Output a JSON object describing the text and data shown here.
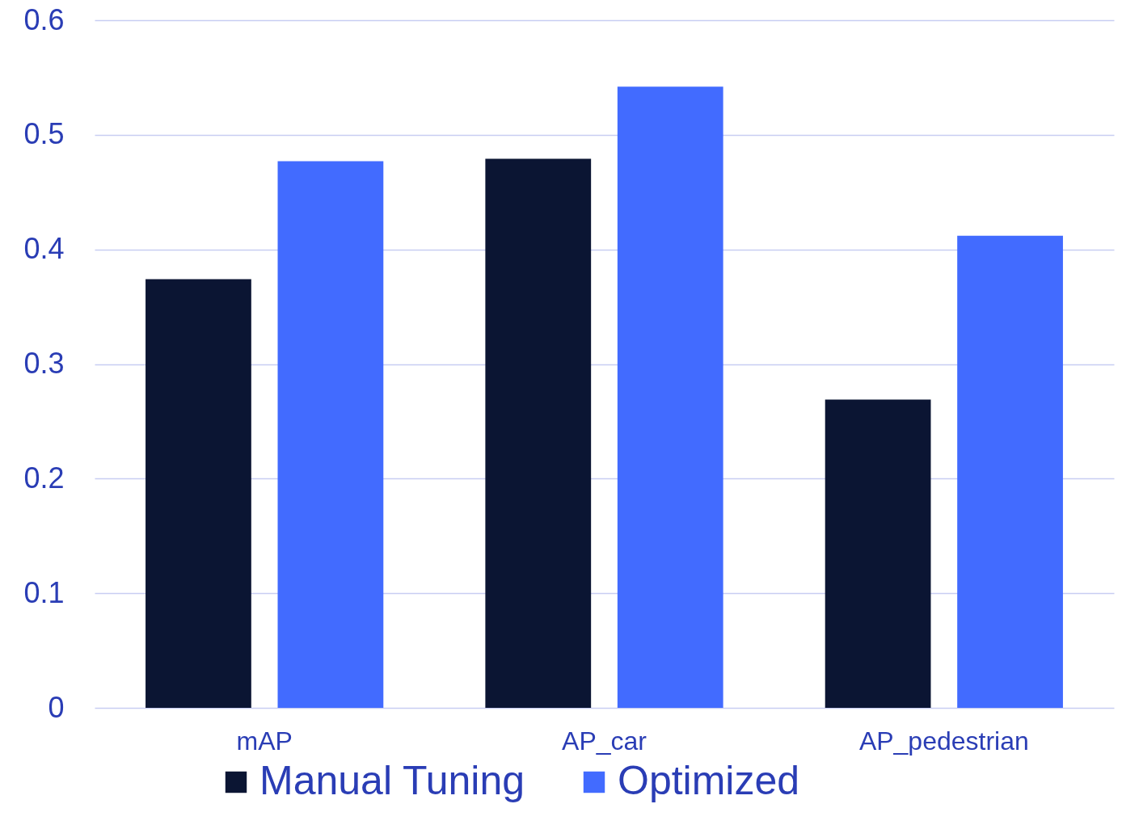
{
  "chart_data": {
    "type": "bar",
    "categories": [
      "mAP",
      "AP_car",
      "AP_pedestrian"
    ],
    "series": [
      {
        "name": "Manual Tuning",
        "color": "#0b1533",
        "values": [
          0.374,
          0.479,
          0.269
        ]
      },
      {
        "name": "Optimized",
        "color": "#426bff",
        "values": [
          0.477,
          0.542,
          0.412
        ]
      }
    ],
    "ylim": [
      0,
      0.6
    ],
    "yticks": [
      0,
      0.1,
      0.2,
      0.3,
      0.4,
      0.5,
      0.6
    ],
    "grid": "y",
    "legend": "bottom"
  }
}
